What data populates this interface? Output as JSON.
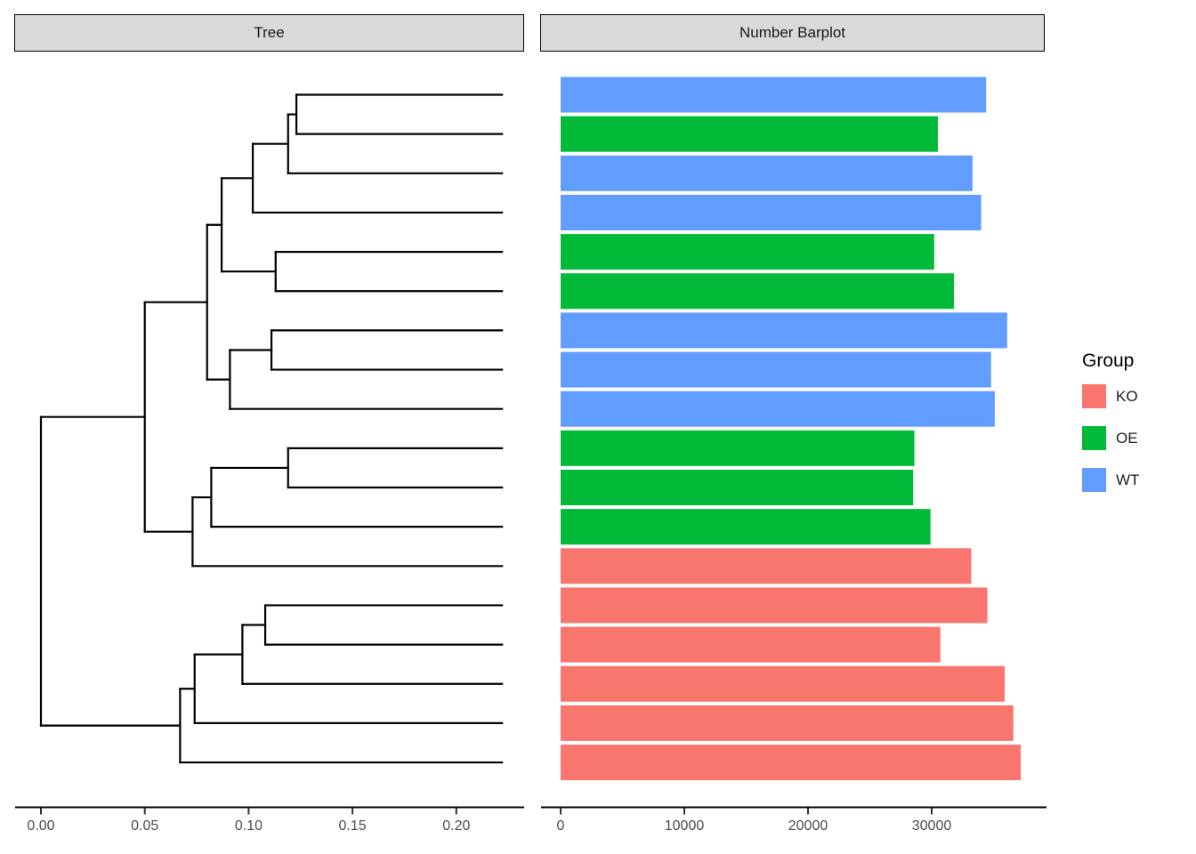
{
  "panels": {
    "tree_title": "Tree",
    "barplot_title": "Number Barplot"
  },
  "legend": {
    "title": "Group",
    "items": [
      {
        "label": "KO",
        "color": "#F8766D"
      },
      {
        "label": "OE",
        "color": "#00BA38"
      },
      {
        "label": "WT",
        "color": "#619CFF"
      }
    ]
  },
  "colors": {
    "strip_fill": "#D9D9D9",
    "strip_border": "#000000",
    "axis_line": "#000000",
    "tick": "#333333",
    "tick_label": "#4D4D4D",
    "tree_branch": "#000000",
    "background": "#FFFFFF"
  },
  "chart_data": [
    {
      "type": "dendrogram",
      "title": "Tree",
      "orientation": "leaves-right",
      "leaf_count": 18,
      "leaf_tip_height": 0.222,
      "axis": {
        "ticks": [
          0,
          0.05,
          0.1,
          0.15,
          0.2
        ],
        "tick_labels": [
          "0.00",
          "0.05",
          "0.10",
          "0.15",
          "0.20"
        ],
        "range": [
          0,
          0.2335
        ]
      },
      "root": {
        "h": 0.0,
        "c": [
          {
            "h": 0.05,
            "c": [
              {
                "h": 0.08,
                "c": [
                  {
                    "h": 0.087,
                    "c": [
                      {
                        "h": 0.102,
                        "c": [
                          {
                            "h": 0.119,
                            "c": [
                              {
                                "h": 0.123,
                                "c": [
                                  {
                                    "leaf": 1
                                  },
                                  {
                                    "leaf": 2
                                  }
                                ]
                              },
                              {
                                "leaf": 3
                              }
                            ]
                          },
                          {
                            "leaf": 4
                          }
                        ]
                      },
                      {
                        "h": 0.113,
                        "c": [
                          {
                            "leaf": 5
                          },
                          {
                            "leaf": 6
                          }
                        ]
                      }
                    ]
                  },
                  {
                    "h": 0.091,
                    "c": [
                      {
                        "h": 0.111,
                        "c": [
                          {
                            "leaf": 7
                          },
                          {
                            "leaf": 8
                          }
                        ]
                      },
                      {
                        "leaf": 9
                      }
                    ]
                  }
                ]
              },
              {
                "h": 0.073,
                "c": [
                  {
                    "h": 0.082,
                    "c": [
                      {
                        "h": 0.119,
                        "c": [
                          {
                            "leaf": 10
                          },
                          {
                            "leaf": 11
                          }
                        ]
                      },
                      {
                        "leaf": 12
                      }
                    ]
                  },
                  {
                    "leaf": 13
                  }
                ]
              }
            ]
          },
          {
            "h": 0.067,
            "c": [
              {
                "h": 0.074,
                "c": [
                  {
                    "h": 0.097,
                    "c": [
                      {
                        "h": 0.108,
                        "c": [
                          {
                            "leaf": 14
                          },
                          {
                            "leaf": 15
                          }
                        ]
                      },
                      {
                        "leaf": 16
                      }
                    ]
                  },
                  {
                    "leaf": 17
                  }
                ]
              },
              {
                "leaf": 18
              }
            ]
          }
        ]
      }
    },
    {
      "type": "bar",
      "title": "Number Barplot",
      "orientation": "horizontal",
      "axis": {
        "ticks": [
          0,
          10000,
          20000,
          30000
        ],
        "tick_labels": [
          "0",
          "10000",
          "20000",
          "30000"
        ],
        "range": [
          0,
          39200
        ]
      },
      "bars": [
        {
          "row": 1,
          "group": "WT",
          "value": 34400
        },
        {
          "row": 2,
          "group": "OE",
          "value": 30500
        },
        {
          "row": 3,
          "group": "WT",
          "value": 33300
        },
        {
          "row": 4,
          "group": "WT",
          "value": 34000
        },
        {
          "row": 5,
          "group": "OE",
          "value": 30200
        },
        {
          "row": 6,
          "group": "OE",
          "value": 31800
        },
        {
          "row": 7,
          "group": "WT",
          "value": 36100
        },
        {
          "row": 8,
          "group": "WT",
          "value": 34800
        },
        {
          "row": 9,
          "group": "WT",
          "value": 35100
        },
        {
          "row": 10,
          "group": "OE",
          "value": 28600
        },
        {
          "row": 11,
          "group": "OE",
          "value": 28500
        },
        {
          "row": 12,
          "group": "OE",
          "value": 29900
        },
        {
          "row": 13,
          "group": "KO",
          "value": 33200
        },
        {
          "row": 14,
          "group": "KO",
          "value": 34500
        },
        {
          "row": 15,
          "group": "KO",
          "value": 30700
        },
        {
          "row": 16,
          "group": "KO",
          "value": 35900
        },
        {
          "row": 17,
          "group": "KO",
          "value": 36600
        },
        {
          "row": 18,
          "group": "KO",
          "value": 37200
        }
      ]
    }
  ]
}
